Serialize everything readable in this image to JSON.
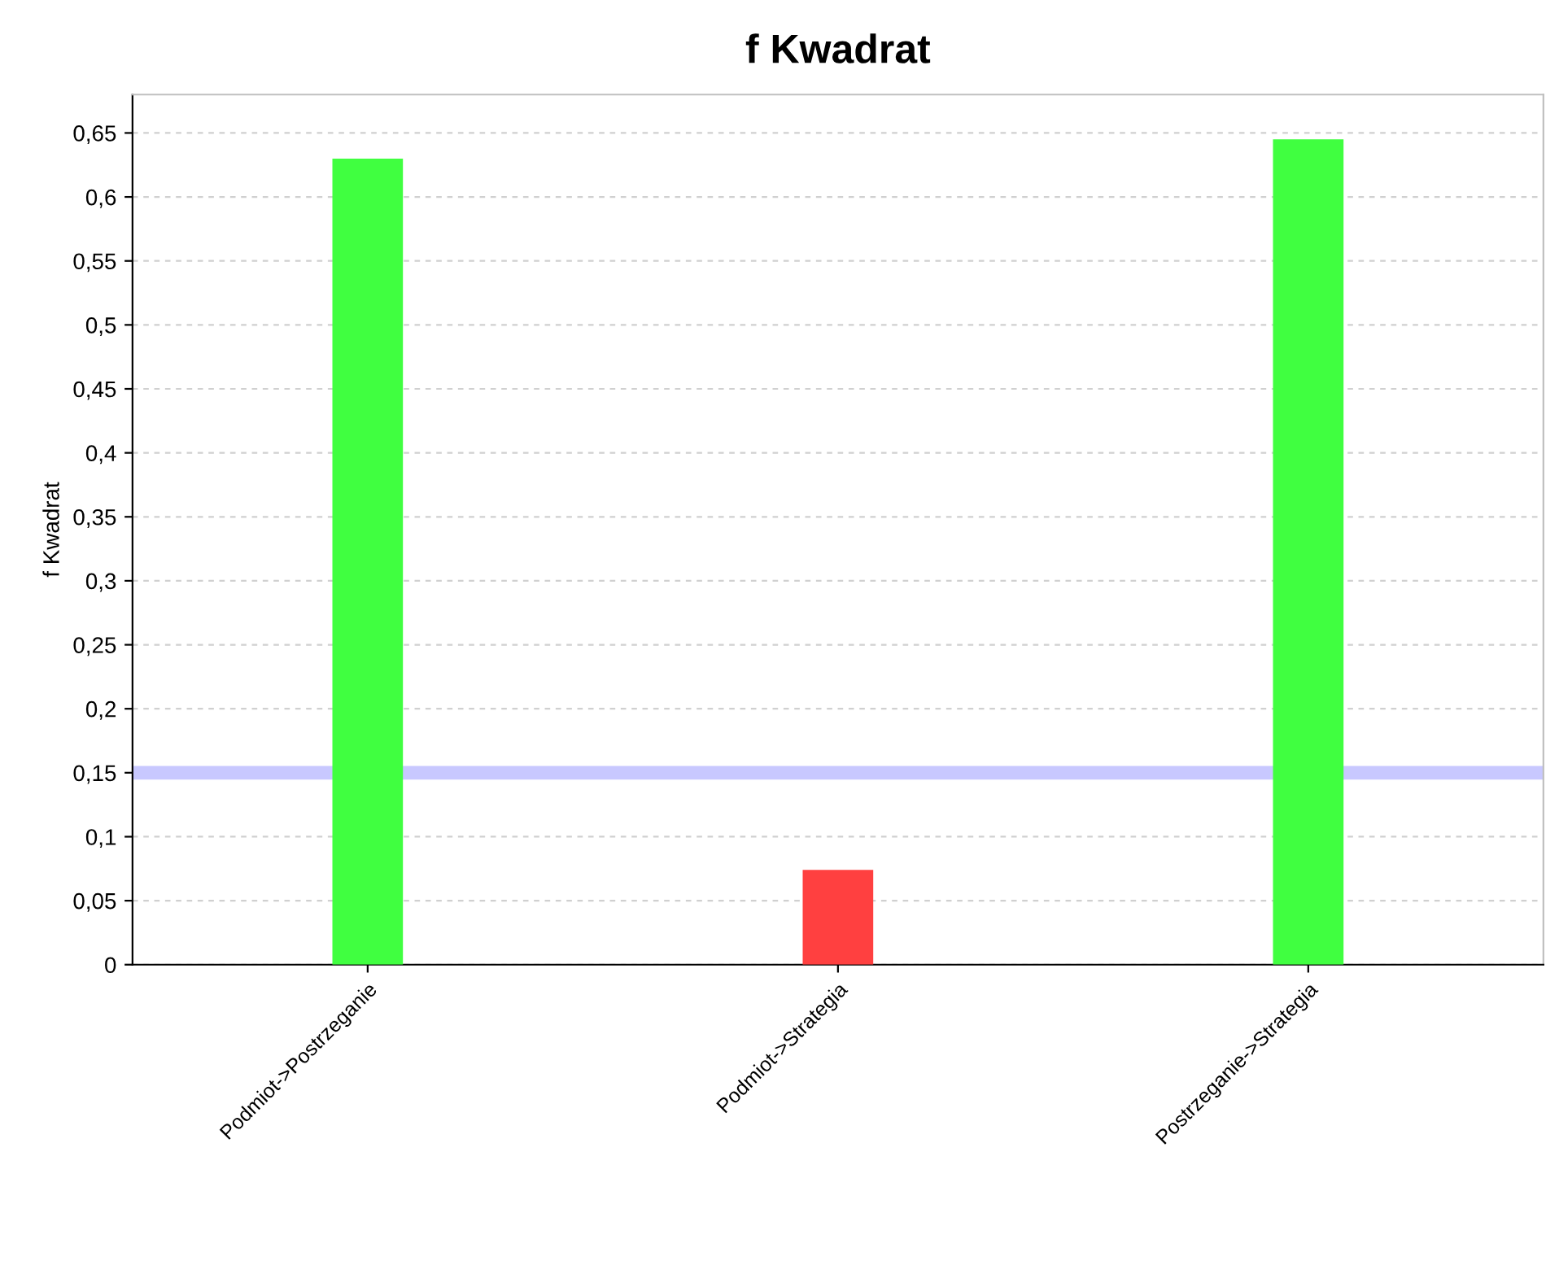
{
  "chart_data": {
    "type": "bar",
    "title": "f Kwadrat",
    "ylabel": "f Kwadrat",
    "categories": [
      "Podmiot->Postrzeganie",
      "Podmiot->Strategia",
      "Postrzeganie->Strategia"
    ],
    "values": [
      0.63,
      0.074,
      0.645
    ],
    "colors": [
      "#40ff40",
      "#ff4040",
      "#40ff40"
    ],
    "ylim": [
      0,
      0.68
    ],
    "yticks": [
      {
        "value": 0,
        "label": "0"
      },
      {
        "value": 0.05,
        "label": "0,05"
      },
      {
        "value": 0.1,
        "label": "0,1"
      },
      {
        "value": 0.15,
        "label": "0,15"
      },
      {
        "value": 0.2,
        "label": "0,2"
      },
      {
        "value": 0.25,
        "label": "0,25"
      },
      {
        "value": 0.3,
        "label": "0,3"
      },
      {
        "value": 0.35,
        "label": "0,35"
      },
      {
        "value": 0.4,
        "label": "0,4"
      },
      {
        "value": 0.45,
        "label": "0,45"
      },
      {
        "value": 0.5,
        "label": "0,5"
      },
      {
        "value": 0.55,
        "label": "0,55"
      },
      {
        "value": 0.6,
        "label": "0,6"
      },
      {
        "value": 0.65,
        "label": "0,65"
      }
    ],
    "ref_lines": [
      {
        "axis": "y",
        "value": 0.15,
        "color": "#c8c8ff"
      }
    ],
    "grid": "y"
  }
}
